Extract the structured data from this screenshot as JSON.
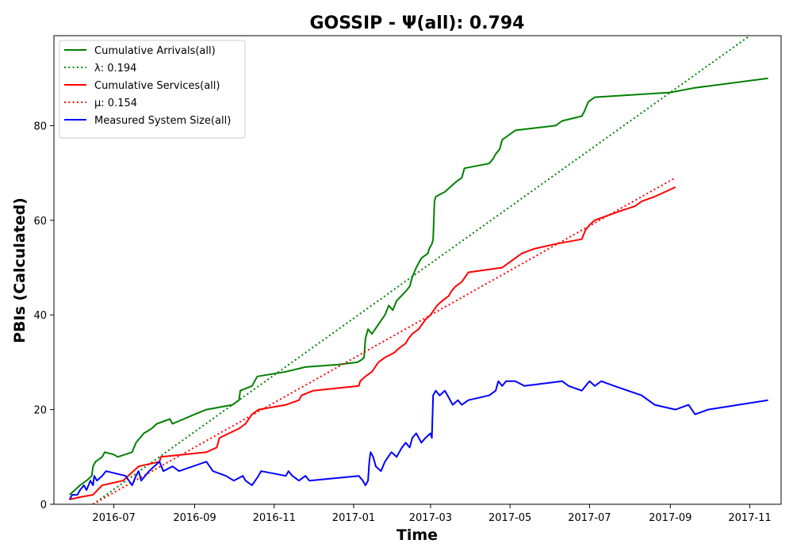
{
  "chart_data": {
    "type": "line",
    "title": "GOSSIP -  Ψ(all): 0.794",
    "xlabel": "Time",
    "ylabel": "PBIs (Calculated)",
    "xlim": [
      "2016-05-16",
      "2017-11-25"
    ],
    "ylim": [
      0,
      99
    ],
    "x_ticks": [
      "2016-07",
      "2016-09",
      "2016-11",
      "2017-01",
      "2017-03",
      "2017-05",
      "2017-07",
      "2017-09",
      "2017-11"
    ],
    "y_ticks": [
      0,
      20,
      40,
      60,
      80
    ],
    "legend": {
      "position": "top-left"
    },
    "grid": false,
    "series": [
      {
        "name": "Cumulative Arrivals(all)",
        "color": "#008000",
        "style": "solid",
        "points": [
          [
            "2016-05-28",
            2
          ],
          [
            "2016-06-05",
            4
          ],
          [
            "2016-06-10",
            5
          ],
          [
            "2016-06-14",
            6
          ],
          [
            "2016-06-15",
            8
          ],
          [
            "2016-06-17",
            9
          ],
          [
            "2016-06-22",
            10
          ],
          [
            "2016-06-24",
            11
          ],
          [
            "2016-07-01",
            10.5
          ],
          [
            "2016-07-04",
            10
          ],
          [
            "2016-07-15",
            11
          ],
          [
            "2016-07-18",
            13
          ],
          [
            "2016-07-24",
            15
          ],
          [
            "2016-07-30",
            16
          ],
          [
            "2016-08-03",
            17
          ],
          [
            "2016-08-13",
            18
          ],
          [
            "2016-08-15",
            17
          ],
          [
            "2016-09-01",
            19
          ],
          [
            "2016-09-10",
            20
          ],
          [
            "2016-09-30",
            21
          ],
          [
            "2016-10-05",
            22
          ],
          [
            "2016-10-06",
            24
          ],
          [
            "2016-10-15",
            25
          ],
          [
            "2016-10-19",
            27
          ],
          [
            "2016-11-10",
            28
          ],
          [
            "2016-11-25",
            29
          ],
          [
            "2016-12-20",
            29.5
          ],
          [
            "2017-01-04",
            30
          ],
          [
            "2017-01-07",
            30.5
          ],
          [
            "2017-01-09",
            31
          ],
          [
            "2017-01-10",
            35
          ],
          [
            "2017-01-12",
            37
          ],
          [
            "2017-01-15",
            36
          ],
          [
            "2017-01-20",
            38
          ],
          [
            "2017-01-25",
            40
          ],
          [
            "2017-01-28",
            42
          ],
          [
            "2017-01-31",
            41
          ],
          [
            "2017-02-03",
            43
          ],
          [
            "2017-02-10",
            45
          ],
          [
            "2017-02-13",
            46
          ],
          [
            "2017-02-15",
            48
          ],
          [
            "2017-02-18",
            50
          ],
          [
            "2017-02-20",
            51
          ],
          [
            "2017-02-22",
            52
          ],
          [
            "2017-02-27",
            53
          ],
          [
            "2017-02-28",
            54
          ],
          [
            "2017-03-02",
            55
          ],
          [
            "2017-03-03",
            56
          ],
          [
            "2017-03-04",
            64
          ],
          [
            "2017-03-05",
            65
          ],
          [
            "2017-03-12",
            66
          ],
          [
            "2017-03-20",
            68
          ],
          [
            "2017-03-25",
            69
          ],
          [
            "2017-03-27",
            71
          ],
          [
            "2017-04-15",
            72
          ],
          [
            "2017-04-18",
            73
          ],
          [
            "2017-04-20",
            74
          ],
          [
            "2017-04-23",
            75
          ],
          [
            "2017-04-25",
            77
          ],
          [
            "2017-05-05",
            79
          ],
          [
            "2017-06-05",
            80
          ],
          [
            "2017-06-10",
            81
          ],
          [
            "2017-06-25",
            82
          ],
          [
            "2017-06-27",
            83
          ],
          [
            "2017-06-30",
            85
          ],
          [
            "2017-07-05",
            86
          ],
          [
            "2017-09-01",
            87
          ],
          [
            "2017-09-20",
            88
          ],
          [
            "2017-11-15",
            90
          ]
        ]
      },
      {
        "name": "λ: 0.194",
        "color": "#008000",
        "style": "dotted",
        "points": [
          [
            "2016-06-15",
            0
          ],
          [
            "2017-11-01",
            99
          ]
        ]
      },
      {
        "name": "Cumulative Services(all)",
        "color": "#ff0000",
        "style": "solid",
        "points": [
          [
            "2016-05-28",
            1
          ],
          [
            "2016-06-05",
            1.5
          ],
          [
            "2016-06-15",
            2
          ],
          [
            "2016-06-22",
            4
          ],
          [
            "2016-07-08",
            5
          ],
          [
            "2016-07-20",
            8
          ],
          [
            "2016-08-05",
            9
          ],
          [
            "2016-08-06",
            10
          ],
          [
            "2016-09-10",
            11
          ],
          [
            "2016-09-18",
            12
          ],
          [
            "2016-09-20",
            14
          ],
          [
            "2016-10-05",
            16
          ],
          [
            "2016-10-10",
            17
          ],
          [
            "2016-10-15",
            19
          ],
          [
            "2016-10-20",
            20
          ],
          [
            "2016-11-10",
            21
          ],
          [
            "2016-11-20",
            22
          ],
          [
            "2016-11-22",
            23
          ],
          [
            "2016-12-01",
            24
          ],
          [
            "2017-01-05",
            25
          ],
          [
            "2017-01-06",
            26
          ],
          [
            "2017-01-10",
            27
          ],
          [
            "2017-01-15",
            28
          ],
          [
            "2017-01-20",
            30
          ],
          [
            "2017-01-25",
            31
          ],
          [
            "2017-02-01",
            32
          ],
          [
            "2017-02-05",
            33
          ],
          [
            "2017-02-10",
            34
          ],
          [
            "2017-02-12",
            35
          ],
          [
            "2017-02-15",
            36
          ],
          [
            "2017-02-20",
            37
          ],
          [
            "2017-02-25",
            39
          ],
          [
            "2017-03-01",
            40
          ],
          [
            "2017-03-06",
            42
          ],
          [
            "2017-03-10",
            43
          ],
          [
            "2017-03-15",
            44
          ],
          [
            "2017-03-17",
            45
          ],
          [
            "2017-03-20",
            46
          ],
          [
            "2017-03-25",
            47
          ],
          [
            "2017-03-30",
            49
          ],
          [
            "2017-04-25",
            50
          ],
          [
            "2017-05-05",
            52
          ],
          [
            "2017-05-10",
            53
          ],
          [
            "2017-05-20",
            54
          ],
          [
            "2017-06-05",
            55
          ],
          [
            "2017-06-25",
            56
          ],
          [
            "2017-06-28",
            58
          ],
          [
            "2017-07-01",
            59
          ],
          [
            "2017-07-05",
            60
          ],
          [
            "2017-07-15",
            61
          ],
          [
            "2017-07-25",
            62
          ],
          [
            "2017-08-05",
            63
          ],
          [
            "2017-08-10",
            64
          ],
          [
            "2017-08-20",
            65
          ],
          [
            "2017-09-05",
            67
          ]
        ]
      },
      {
        "name": "μ: 0.154",
        "color": "#ff0000",
        "style": "dotted",
        "points": [
          [
            "2016-06-15",
            0
          ],
          [
            "2017-09-05",
            69
          ]
        ]
      },
      {
        "name": "Measured System Size(all)",
        "color": "#0000ff",
        "style": "solid",
        "points": [
          [
            "2016-05-28",
            1
          ],
          [
            "2016-05-30",
            2
          ],
          [
            "2016-06-03",
            2
          ],
          [
            "2016-06-05",
            3
          ],
          [
            "2016-06-08",
            4
          ],
          [
            "2016-06-10",
            3
          ],
          [
            "2016-06-13",
            5
          ],
          [
            "2016-06-15",
            4
          ],
          [
            "2016-06-16",
            6
          ],
          [
            "2016-06-18",
            5
          ],
          [
            "2016-06-22",
            6
          ],
          [
            "2016-06-25",
            7
          ],
          [
            "2016-07-10",
            6
          ],
          [
            "2016-07-15",
            4
          ],
          [
            "2016-07-18",
            6
          ],
          [
            "2016-07-20",
            7
          ],
          [
            "2016-07-22",
            5
          ],
          [
            "2016-07-25",
            6
          ],
          [
            "2016-07-28",
            7
          ],
          [
            "2016-08-01",
            8
          ],
          [
            "2016-08-05",
            9
          ],
          [
            "2016-08-08",
            7
          ],
          [
            "2016-08-15",
            8
          ],
          [
            "2016-08-20",
            7
          ],
          [
            "2016-09-10",
            9
          ],
          [
            "2016-09-15",
            7
          ],
          [
            "2016-09-25",
            6
          ],
          [
            "2016-10-01",
            5
          ],
          [
            "2016-10-08",
            6
          ],
          [
            "2016-10-10",
            5
          ],
          [
            "2016-10-15",
            4
          ],
          [
            "2016-10-20",
            6
          ],
          [
            "2016-10-22",
            7
          ],
          [
            "2016-11-10",
            6
          ],
          [
            "2016-11-12",
            7
          ],
          [
            "2016-11-15",
            6
          ],
          [
            "2016-11-20",
            5
          ],
          [
            "2016-11-25",
            6
          ],
          [
            "2016-11-28",
            5
          ],
          [
            "2017-01-05",
            6
          ],
          [
            "2017-01-08",
            5
          ],
          [
            "2017-01-10",
            4
          ],
          [
            "2017-01-12",
            5
          ],
          [
            "2017-01-13",
            9
          ],
          [
            "2017-01-14",
            11
          ],
          [
            "2017-01-16",
            10
          ],
          [
            "2017-01-18",
            8
          ],
          [
            "2017-01-22",
            7
          ],
          [
            "2017-01-25",
            9
          ],
          [
            "2017-01-30",
            11
          ],
          [
            "2017-02-03",
            10
          ],
          [
            "2017-02-07",
            12
          ],
          [
            "2017-02-10",
            13
          ],
          [
            "2017-02-13",
            12
          ],
          [
            "2017-02-15",
            14
          ],
          [
            "2017-02-18",
            15
          ],
          [
            "2017-02-22",
            13
          ],
          [
            "2017-02-25",
            14
          ],
          [
            "2017-03-01",
            15
          ],
          [
            "2017-03-02",
            14
          ],
          [
            "2017-03-03",
            23
          ],
          [
            "2017-03-05",
            24
          ],
          [
            "2017-03-08",
            23
          ],
          [
            "2017-03-12",
            24
          ],
          [
            "2017-03-18",
            21
          ],
          [
            "2017-03-22",
            22
          ],
          [
            "2017-03-25",
            21
          ],
          [
            "2017-03-30",
            22
          ],
          [
            "2017-04-15",
            23
          ],
          [
            "2017-04-20",
            24
          ],
          [
            "2017-04-22",
            26
          ],
          [
            "2017-04-25",
            25
          ],
          [
            "2017-04-28",
            26
          ],
          [
            "2017-05-05",
            26
          ],
          [
            "2017-05-12",
            25
          ],
          [
            "2017-06-10",
            26
          ],
          [
            "2017-06-15",
            25
          ],
          [
            "2017-06-25",
            24
          ],
          [
            "2017-07-01",
            26
          ],
          [
            "2017-07-05",
            25
          ],
          [
            "2017-07-10",
            26
          ],
          [
            "2017-07-20",
            25
          ],
          [
            "2017-08-10",
            23
          ],
          [
            "2017-08-20",
            21
          ],
          [
            "2017-09-05",
            20
          ],
          [
            "2017-09-15",
            21
          ],
          [
            "2017-09-20",
            19
          ],
          [
            "2017-09-30",
            20
          ],
          [
            "2017-11-15",
            22
          ]
        ]
      }
    ]
  }
}
